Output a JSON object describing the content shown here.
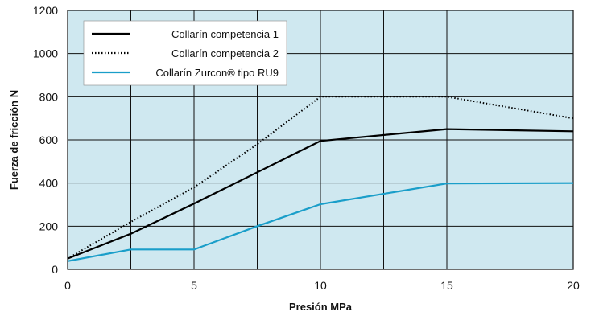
{
  "chart_data": {
    "type": "line",
    "xlabel": "Presión MPa",
    "ylabel": "Fuerza de fricción N",
    "xlim": [
      0,
      20
    ],
    "ylim": [
      0,
      1200
    ],
    "xticks": [
      "0",
      "5",
      "10",
      "15",
      "20"
    ],
    "yticks": [
      "0",
      "200",
      "400",
      "600",
      "800",
      "1000",
      "1200"
    ],
    "grid": true,
    "legend_position": "top-left",
    "background_color": "#cfe8f0",
    "series": [
      {
        "name": "Collarín competencia 1",
        "style": "solid",
        "color": "#000000",
        "x": [
          0,
          2.5,
          5,
          7.5,
          10,
          15,
          20
        ],
        "y": [
          50,
          165,
          305,
          450,
          595,
          650,
          640
        ]
      },
      {
        "name": "Collarín competencia 2",
        "style": "dotted",
        "color": "#000000",
        "x": [
          0,
          2.5,
          5,
          7.5,
          10,
          15,
          20
        ],
        "y": [
          50,
          220,
          380,
          580,
          800,
          800,
          700
        ]
      },
      {
        "name": "Collarín Zurcon® tipo RU9",
        "style": "solid",
        "color": "#1a9ec9",
        "x": [
          0,
          2.5,
          5,
          7.5,
          10,
          12.5,
          15,
          20
        ],
        "y": [
          38,
          92,
          92,
          200,
          302,
          350,
          398,
          400
        ]
      }
    ]
  }
}
